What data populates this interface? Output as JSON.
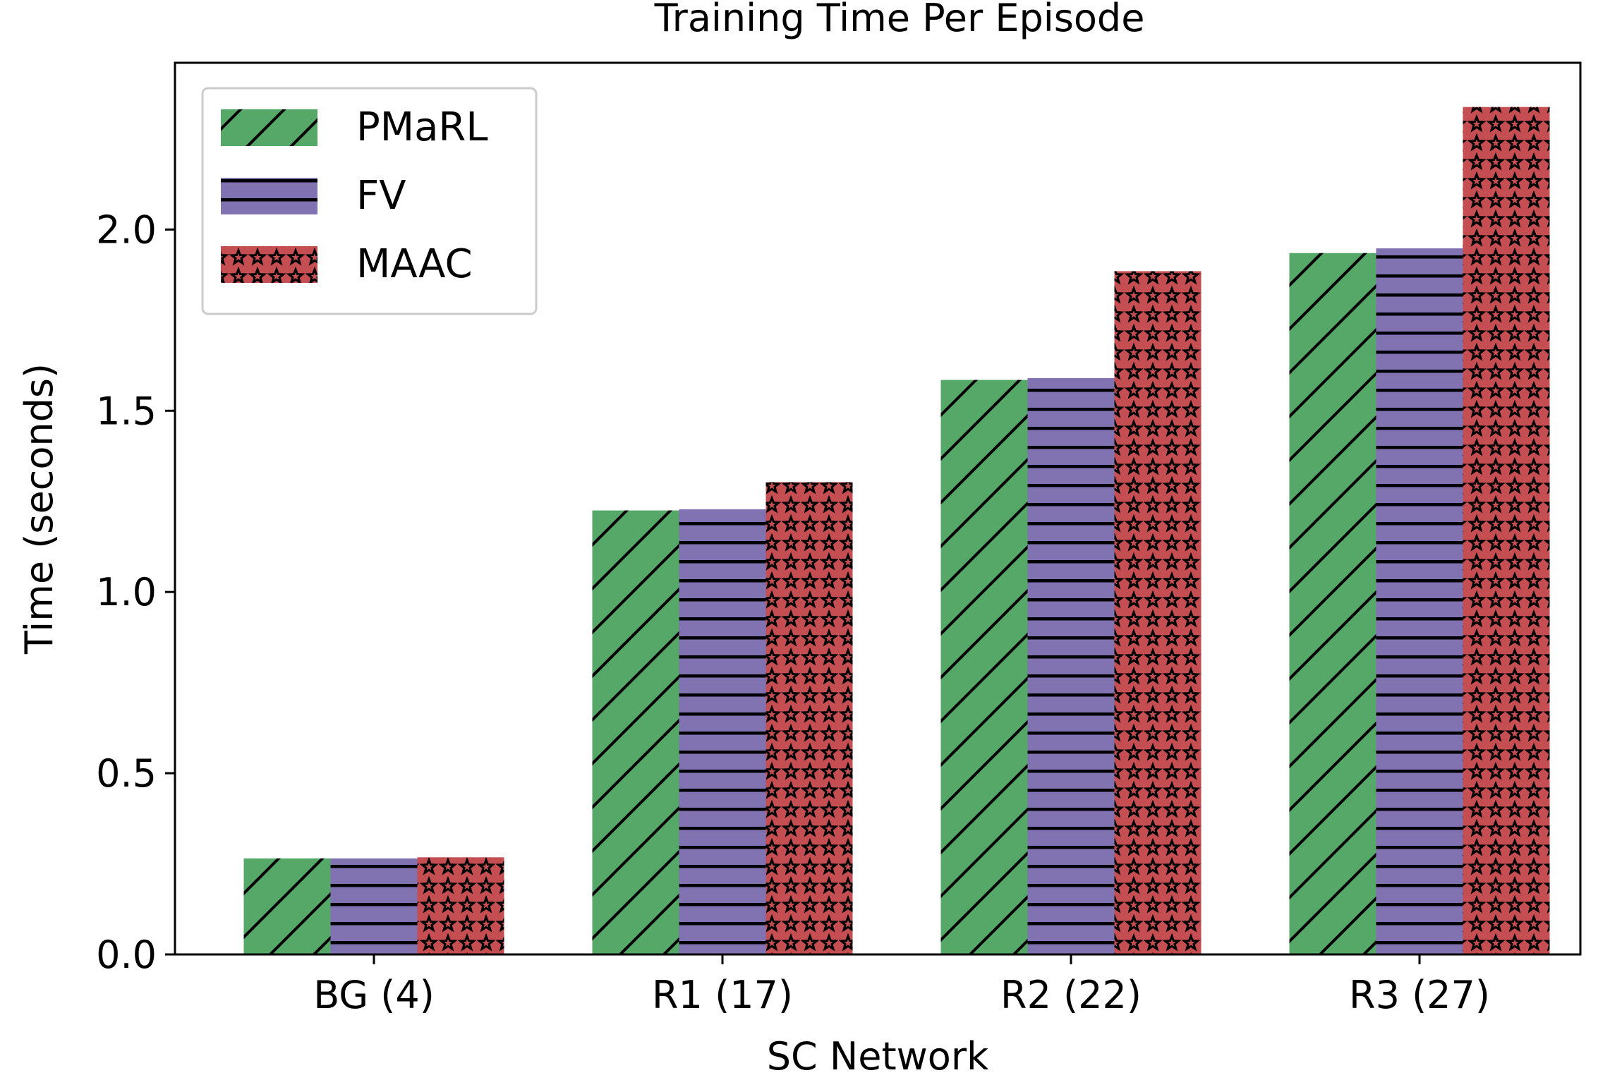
{
  "chart_data": {
    "type": "bar",
    "title": "Training Time Per Episode",
    "xlabel": "SC Network",
    "ylabel": "Time (seconds)",
    "categories": [
      "BG (4)",
      "R1 (17)",
      "R2 (22)",
      "R3 (27)"
    ],
    "ylim": [
      0,
      2.46
    ],
    "yticks": [
      0.0,
      0.5,
      1.0,
      1.5,
      2.0
    ],
    "ytick_labels": [
      "0.0",
      "0.5",
      "1.0",
      "1.5",
      "2.0"
    ],
    "legend_position": "upper-left",
    "grid": false,
    "series": [
      {
        "name": "PMaRL",
        "values": [
          0.265,
          1.225,
          1.585,
          1.935
        ],
        "color": "#55a868",
        "pattern": "diagonal-hatch"
      },
      {
        "name": "FV",
        "values": [
          0.265,
          1.228,
          1.59,
          1.948
        ],
        "color": "#8172b2",
        "pattern": "horizontal-hatch"
      },
      {
        "name": "MAAC",
        "values": [
          0.268,
          1.303,
          1.885,
          2.338
        ],
        "color": "#c44e52",
        "pattern": "stars"
      }
    ]
  }
}
